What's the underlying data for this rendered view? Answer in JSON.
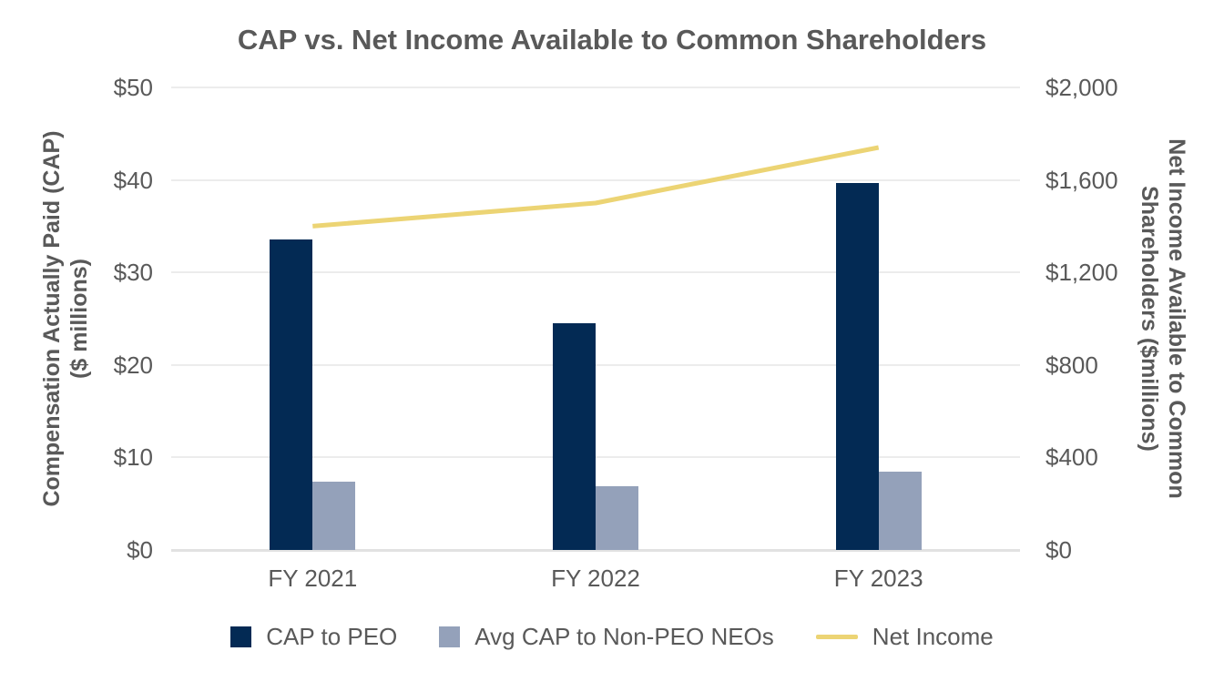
{
  "title": "CAP vs. Net Income Available to Common Shareholders",
  "colors": {
    "navy": "#032A54",
    "steel": "#94A1BA",
    "yellow": "#ECD474",
    "grid": "#ECECEC",
    "text": "#595959"
  },
  "chart_data": {
    "type": "combo-bar-line",
    "title": "CAP vs. Net Income Available to Common Shareholders",
    "categories": [
      "FY 2021",
      "FY 2022",
      "FY 2023"
    ],
    "series": [
      {
        "name": "CAP to PEO",
        "type": "bar",
        "axis": "left",
        "color": "#032A54",
        "values": [
          33.6,
          24.5,
          39.7
        ]
      },
      {
        "name": "Avg CAP to Non-PEO NEOs",
        "type": "bar",
        "axis": "left",
        "color": "#94A1BA",
        "values": [
          7.4,
          6.9,
          8.5
        ]
      },
      {
        "name": "Net Income",
        "type": "line",
        "axis": "right",
        "color": "#ECD474",
        "values": [
          1400,
          1500,
          1740
        ]
      }
    ],
    "left_axis": {
      "title_line1": "Compensation Actually Paid (CAP)",
      "title_line2": "($ millions)",
      "ticks": [
        "$0",
        "$10",
        "$20",
        "$30",
        "$40",
        "$50"
      ],
      "min": 0,
      "max": 50
    },
    "right_axis": {
      "title_line1": "Net Income Available to Common",
      "title_line2": "Shareholders ($millions)",
      "ticks": [
        "$0",
        "$400",
        "$800",
        "$1,200",
        "$1,600",
        "$2,000"
      ],
      "min": 0,
      "max": 2000
    },
    "grid": true,
    "legend_position": "bottom"
  }
}
